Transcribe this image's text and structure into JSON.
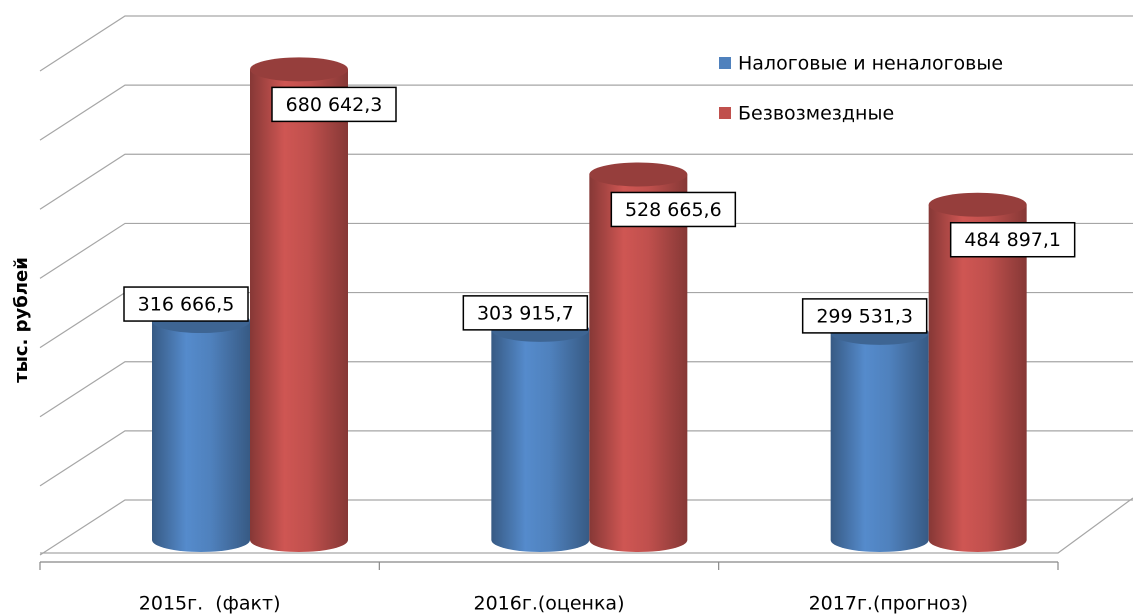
{
  "chart_data": {
    "type": "bar3d",
    "y_label": "тыс. рублей",
    "categories": [
      "2015г.  (факт)",
      "2016г.(оценка)",
      "2017г.(прогноз)"
    ],
    "series": [
      {
        "name": "Налоговые и неналоговые",
        "color": "#4f81bd",
        "values": [
          316666.5,
          303915.7,
          299531.3
        ],
        "value_labels": [
          "316 666,5",
          "303 915,7",
          "299 531,3"
        ]
      },
      {
        "name": "Безвозмездные",
        "color": "#c0504d",
        "values": [
          680642.3,
          528665.6,
          484897.1
        ],
        "value_labels": [
          "680 642,3",
          "528 665,6",
          "484 897,1"
        ]
      }
    ],
    "ylim": [
      0,
      700000
    ],
    "yticks": [
      0,
      100000,
      200000,
      300000,
      400000,
      500000,
      600000,
      700000
    ],
    "grid": true,
    "legend": "upper-right"
  }
}
